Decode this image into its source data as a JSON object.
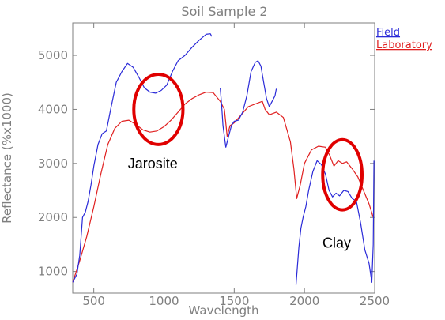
{
  "chart_data": {
    "type": "line",
    "title": "Soil Sample 2",
    "xlabel": "Wavelength",
    "ylabel": "Reflectance (%x1000)",
    "xlim": [
      350,
      2500
    ],
    "ylim": [
      600,
      5600
    ],
    "x_ticks": [
      500,
      1000,
      1500,
      2000,
      2500
    ],
    "y_ticks": [
      1000,
      2000,
      3000,
      4000,
      5000
    ],
    "legend": "top-right",
    "grid": false,
    "series": [
      {
        "name": "Field",
        "color": "#2a2ad8",
        "segments": [
          [
            [
              350,
              800
            ],
            [
              380,
              950
            ],
            [
              400,
              1300
            ],
            [
              420,
              2000
            ],
            [
              440,
              2100
            ],
            [
              460,
              2300
            ],
            [
              480,
              2600
            ],
            [
              500,
              2950
            ],
            [
              530,
              3350
            ],
            [
              560,
              3550
            ],
            [
              590,
              3600
            ],
            [
              620,
              4000
            ],
            [
              660,
              4500
            ],
            [
              700,
              4700
            ],
            [
              740,
              4850
            ],
            [
              780,
              4780
            ],
            [
              820,
              4600
            ],
            [
              860,
              4400
            ],
            [
              900,
              4320
            ],
            [
              940,
              4300
            ],
            [
              980,
              4350
            ],
            [
              1020,
              4450
            ],
            [
              1060,
              4700
            ],
            [
              1100,
              4900
            ],
            [
              1150,
              5000
            ],
            [
              1200,
              5150
            ],
            [
              1250,
              5280
            ],
            [
              1300,
              5390
            ],
            [
              1330,
              5400
            ],
            [
              1340,
              5350
            ]
          ],
          [
            [
              1400,
              4400
            ],
            [
              1410,
              4100
            ],
            [
              1420,
              3700
            ],
            [
              1440,
              3300
            ],
            [
              1460,
              3500
            ],
            [
              1480,
              3700
            ],
            [
              1500,
              3780
            ],
            [
              1530,
              3800
            ],
            [
              1560,
              3950
            ],
            [
              1590,
              4250
            ],
            [
              1620,
              4700
            ],
            [
              1650,
              4870
            ],
            [
              1670,
              4900
            ],
            [
              1690,
              4800
            ],
            [
              1710,
              4500
            ],
            [
              1730,
              4200
            ],
            [
              1750,
              4050
            ],
            [
              1770,
              4150
            ],
            [
              1790,
              4250
            ],
            [
              1800,
              4380
            ]
          ],
          [
            [
              1940,
              750
            ],
            [
              1950,
              1100
            ],
            [
              1960,
              1450
            ],
            [
              1975,
              1800
            ],
            [
              1990,
              2000
            ],
            [
              2010,
              2200
            ],
            [
              2030,
              2500
            ],
            [
              2060,
              2850
            ],
            [
              2090,
              3050
            ],
            [
              2120,
              2980
            ],
            [
              2150,
              2800
            ],
            [
              2175,
              2500
            ],
            [
              2200,
              2380
            ],
            [
              2225,
              2450
            ],
            [
              2250,
              2400
            ],
            [
              2280,
              2500
            ],
            [
              2310,
              2480
            ],
            [
              2340,
              2350
            ],
            [
              2370,
              2300
            ],
            [
              2400,
              1900
            ],
            [
              2430,
              1400
            ],
            [
              2460,
              1150
            ],
            [
              2480,
              800
            ],
            [
              2490,
              1500
            ],
            [
              2495,
              3050
            ]
          ]
        ]
      },
      {
        "name": "Laboratory",
        "color": "#e02020",
        "segments": [
          [
            [
              350,
              800
            ],
            [
              400,
              1200
            ],
            [
              450,
              1650
            ],
            [
              500,
              2200
            ],
            [
              550,
              2800
            ],
            [
              600,
              3350
            ],
            [
              650,
              3650
            ],
            [
              700,
              3780
            ],
            [
              750,
              3800
            ],
            [
              800,
              3720
            ],
            [
              850,
              3620
            ],
            [
              900,
              3580
            ],
            [
              950,
              3600
            ],
            [
              1000,
              3680
            ],
            [
              1050,
              3800
            ],
            [
              1100,
              3950
            ],
            [
              1150,
              4100
            ],
            [
              1200,
              4200
            ],
            [
              1250,
              4270
            ],
            [
              1300,
              4320
            ],
            [
              1350,
              4310
            ],
            [
              1400,
              4150
            ],
            [
              1430,
              4000
            ],
            [
              1450,
              3500
            ],
            [
              1470,
              3700
            ],
            [
              1500,
              3750
            ],
            [
              1550,
              3900
            ],
            [
              1600,
              4050
            ],
            [
              1650,
              4100
            ],
            [
              1700,
              4150
            ],
            [
              1720,
              4000
            ],
            [
              1750,
              3900
            ],
            [
              1800,
              3950
            ],
            [
              1850,
              3850
            ],
            [
              1900,
              3400
            ],
            [
              1925,
              2900
            ],
            [
              1945,
              2350
            ],
            [
              1970,
              2600
            ],
            [
              2000,
              3000
            ],
            [
              2050,
              3250
            ],
            [
              2100,
              3320
            ],
            [
              2150,
              3300
            ],
            [
              2180,
              3150
            ],
            [
              2210,
              2950
            ],
            [
              2240,
              3050
            ],
            [
              2270,
              3000
            ],
            [
              2300,
              3030
            ],
            [
              2340,
              2900
            ],
            [
              2380,
              2750
            ],
            [
              2420,
              2500
            ],
            [
              2460,
              2250
            ],
            [
              2490,
              2000
            ]
          ]
        ]
      }
    ],
    "annotations": [
      {
        "text": "Jarosite",
        "x": 920,
        "y": 3000,
        "circle_center": [
          960,
          4000
        ],
        "circle_radius": [
          175,
          650
        ]
      },
      {
        "text": "Clay",
        "x": 2230,
        "y": 1530,
        "circle_center": [
          2270,
          2790
        ],
        "circle_radius": [
          140,
          650
        ]
      }
    ]
  }
}
